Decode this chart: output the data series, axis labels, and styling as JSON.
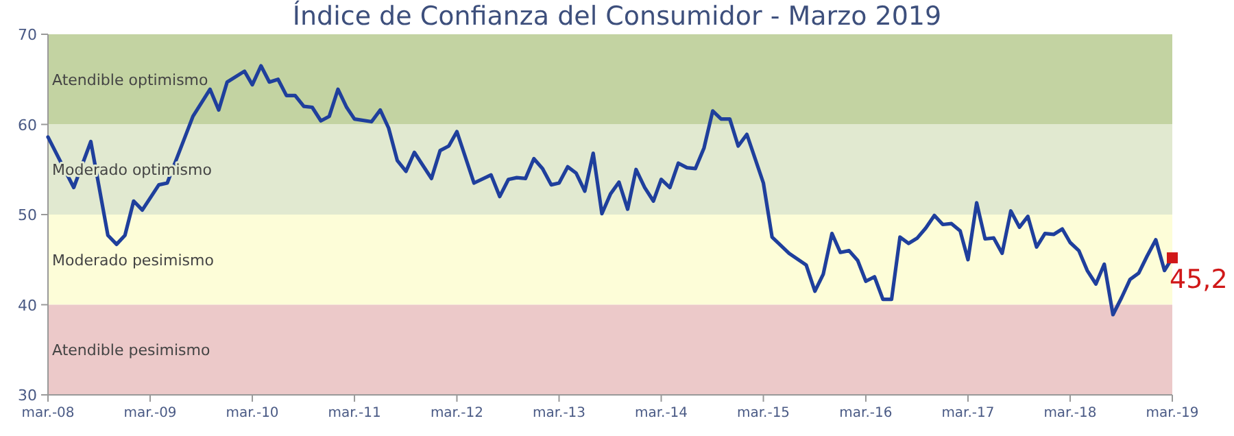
{
  "chart_data": {
    "type": "line",
    "title": "Índice de Confianza del Consumidor - Marzo 2019",
    "xlim": [
      "2008-03",
      "2019-03"
    ],
    "xticks": [
      {
        "value": "2008-03",
        "label": "mar.-08"
      },
      {
        "value": "2009-03",
        "label": "mar.-09"
      },
      {
        "value": "2010-03",
        "label": "mar.-10"
      },
      {
        "value": "2011-03",
        "label": "mar.-11"
      },
      {
        "value": "2012-03",
        "label": "mar.-12"
      },
      {
        "value": "2013-03",
        "label": "mar.-13"
      },
      {
        "value": "2014-03",
        "label": "mar.-14"
      },
      {
        "value": "2015-03",
        "label": "mar.-15"
      },
      {
        "value": "2016-03",
        "label": "mar.-16"
      },
      {
        "value": "2017-03",
        "label": "mar.-17"
      },
      {
        "value": "2018-03",
        "label": "mar.-18"
      },
      {
        "value": "2019-03",
        "label": "mar.-19"
      }
    ],
    "ylim": [
      30,
      70
    ],
    "yticks": [
      30,
      40,
      50,
      60,
      70
    ],
    "grid": false,
    "bands": [
      {
        "axis": "y",
        "from": 60,
        "to": 70,
        "label": "Atendible optimismo",
        "color": "#c3d3a2"
      },
      {
        "axis": "y",
        "from": 50,
        "to": 60,
        "label": "Moderado optimismo",
        "color": "#e1e9d0"
      },
      {
        "axis": "y",
        "from": 40,
        "to": 50,
        "label": "Moderado pesimismo",
        "color": "#fdfdd8"
      },
      {
        "axis": "y",
        "from": 30,
        "to": 40,
        "label": "Atendible pesimismo",
        "color": "#ecc9c9"
      }
    ],
    "series": [
      {
        "color": "#1f3f9c",
        "marker": "none",
        "line_style": "solid",
        "x": [
          "2008-03",
          "2008-06",
          "2008-08",
          "2008-10",
          "2008-11",
          "2008-12",
          "2009-01",
          "2009-02",
          "2009-04",
          "2009-05",
          "2009-08",
          "2009-10",
          "2009-11",
          "2009-12",
          "2010-02",
          "2010-03",
          "2010-04",
          "2010-05",
          "2010-06",
          "2010-07",
          "2010-08",
          "2010-09",
          "2010-10",
          "2010-11",
          "2010-12",
          "2011-01",
          "2011-02",
          "2011-03",
          "2011-05",
          "2011-06",
          "2011-07",
          "2011-08",
          "2011-09",
          "2011-10",
          "2011-12",
          "2012-01",
          "2012-02",
          "2012-03",
          "2012-05",
          "2012-07",
          "2012-08",
          "2012-09",
          "2012-10",
          "2012-11",
          "2012-12",
          "2013-01",
          "2013-02",
          "2013-03",
          "2013-04",
          "2013-05",
          "2013-06",
          "2013-07",
          "2013-08",
          "2013-09",
          "2013-10",
          "2013-11",
          "2013-12",
          "2014-01",
          "2014-02",
          "2014-03",
          "2014-04",
          "2014-05",
          "2014-06",
          "2014-07",
          "2014-08",
          "2014-09",
          "2014-10",
          "2014-11",
          "2014-12",
          "2015-01",
          "2015-03",
          "2015-04",
          "2015-06",
          "2015-08",
          "2015-09",
          "2015-10",
          "2015-11",
          "2015-12",
          "2016-01",
          "2016-02",
          "2016-03",
          "2016-04",
          "2016-05",
          "2016-06",
          "2016-07",
          "2016-08",
          "2016-09",
          "2016-10",
          "2016-11",
          "2016-12",
          "2017-01",
          "2017-02",
          "2017-03",
          "2017-04",
          "2017-05",
          "2017-06",
          "2017-07",
          "2017-08",
          "2017-09",
          "2017-10",
          "2017-11",
          "2017-12",
          "2018-01",
          "2018-02",
          "2018-03",
          "2018-04",
          "2018-05",
          "2018-06",
          "2018-07",
          "2018-08",
          "2018-09",
          "2018-10",
          "2018-11",
          "2018-12",
          "2019-01",
          "2019-02",
          "2019-03"
        ],
        "values": [
          58.6,
          53.0,
          58.1,
          47.7,
          46.7,
          47.7,
          51.5,
          50.5,
          53.3,
          53.5,
          60.9,
          63.9,
          61.6,
          64.7,
          65.9,
          64.4,
          66.5,
          64.7,
          65.0,
          63.2,
          63.2,
          62.0,
          61.9,
          60.4,
          60.9,
          63.9,
          61.9,
          60.6,
          60.3,
          61.6,
          59.6,
          56.0,
          54.8,
          56.9,
          54.0,
          57.1,
          57.6,
          59.2,
          53.5,
          54.4,
          52.0,
          53.9,
          54.1,
          54.0,
          56.2,
          55.1,
          53.3,
          53.5,
          55.3,
          54.6,
          52.6,
          56.8,
          50.1,
          52.3,
          53.6,
          50.6,
          55.0,
          53.0,
          51.5,
          53.9,
          53.0,
          55.7,
          55.2,
          55.1,
          57.4,
          61.5,
          60.6,
          60.6,
          57.6,
          58.9,
          53.5,
          47.5,
          45.7,
          44.4,
          41.5,
          43.4,
          47.9,
          45.8,
          46.0,
          44.9,
          42.6,
          43.1,
          40.6,
          40.6,
          47.5,
          46.8,
          47.4,
          48.5,
          49.9,
          48.9,
          49.0,
          48.2,
          45.0,
          51.3,
          47.3,
          47.4,
          45.7,
          50.4,
          48.6,
          49.8,
          46.4,
          47.9,
          47.8,
          48.4,
          46.9,
          46.0,
          43.8,
          42.3,
          44.5,
          38.9,
          40.8,
          42.8,
          43.5,
          45.4,
          47.2,
          43.8,
          45.2
        ]
      },
      {
        "type": "scatter",
        "color": "#d01818",
        "marker": "square",
        "x": [
          "2019-03"
        ],
        "values": [
          45.2
        ],
        "value_labels": [
          "45,2"
        ]
      }
    ]
  }
}
